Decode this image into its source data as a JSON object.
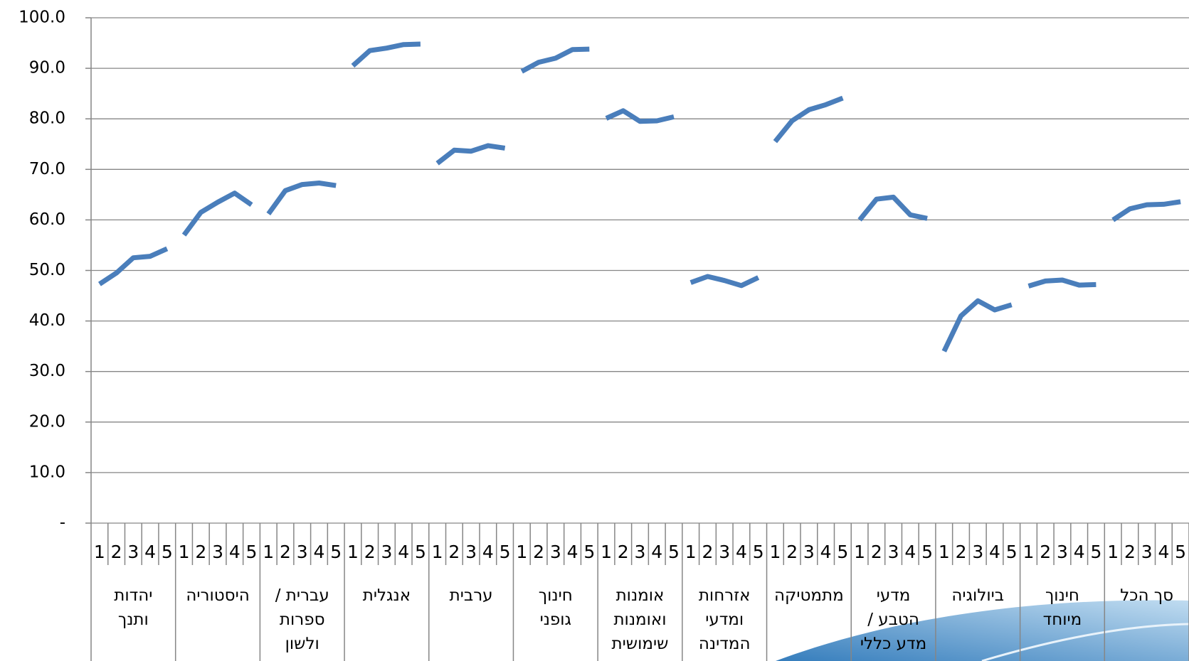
{
  "chart_data": {
    "type": "line",
    "color": "#4a7ebb",
    "grid": true,
    "ylim": [
      0,
      100
    ],
    "yticks": [
      {
        "value": 0,
        "label": "-"
      },
      {
        "value": 10,
        "label": "10.0"
      },
      {
        "value": 20,
        "label": "20.0"
      },
      {
        "value": 30,
        "label": "30.0"
      },
      {
        "value": 40,
        "label": "40.0"
      },
      {
        "value": 50,
        "label": "50.0"
      },
      {
        "value": 60,
        "label": "60.0"
      },
      {
        "value": 70,
        "label": "70.0"
      },
      {
        "value": 80,
        "label": "80.0"
      },
      {
        "value": 90,
        "label": "90.0"
      },
      {
        "value": 100,
        "label": "100.0"
      }
    ],
    "groups": [
      [
        "יהדות",
        "ותנך"
      ],
      [
        "היסטוריה"
      ],
      [
        "עברית /",
        "ספרות",
        "ולשון"
      ],
      [
        "אנגלית"
      ],
      [
        "ערבית"
      ],
      [
        "חינוך",
        "גופני"
      ],
      [
        "אומנות",
        "ואומנות",
        "שימושית"
      ],
      [
        "אזרחות",
        "ומדעי",
        "המדינה"
      ],
      [
        "מתמטיקה"
      ],
      [
        "מדעי",
        "הטבע /",
        "מדע כללי"
      ],
      [
        "ביולוגיה"
      ],
      [
        "חינוך",
        "מיוחד"
      ],
      [
        "סך הכל"
      ]
    ],
    "categories": [
      "1",
      "2",
      "3",
      "4",
      "5",
      "1",
      "2",
      "3",
      "4",
      "5",
      "1",
      "2",
      "3",
      "4",
      "5",
      "1",
      "2",
      "3",
      "4",
      "5",
      "1",
      "2",
      "3",
      "4",
      "5",
      "1",
      "2",
      "3",
      "4",
      "5",
      "1",
      "2",
      "3",
      "4",
      "5",
      "1",
      "2",
      "3",
      "4",
      "5",
      "1",
      "2",
      "3",
      "4",
      "5",
      "1",
      "2",
      "3",
      "4",
      "5",
      "1",
      "2",
      "3",
      "4",
      "5",
      "1",
      "2",
      "3",
      "4",
      "5",
      "1",
      "2",
      "3",
      "4",
      "5"
    ],
    "values": [
      47.3,
      49.5,
      52.5,
      52.8,
      54.3,
      57,
      61.5,
      63.5,
      65.3,
      63,
      61.2,
      65.8,
      67,
      67.3,
      66.8,
      90.5,
      93.5,
      94,
      94.7,
      94.8,
      71.2,
      73.8,
      73.6,
      74.7,
      74.2,
      89.4,
      91.2,
      92,
      93.7,
      93.8,
      80.1,
      81.6,
      79.5,
      79.6,
      80.4,
      47.6,
      48.8,
      48,
      47,
      48.6,
      75.5,
      79.6,
      81.8,
      82.8,
      84.1,
      60,
      64.1,
      64.5,
      61,
      60.3,
      34,
      41,
      44,
      42.2,
      43.2,
      46.9,
      47.9,
      48.1,
      47.1,
      47.2,
      60,
      62.2,
      63,
      63.1,
      63.6
    ]
  }
}
